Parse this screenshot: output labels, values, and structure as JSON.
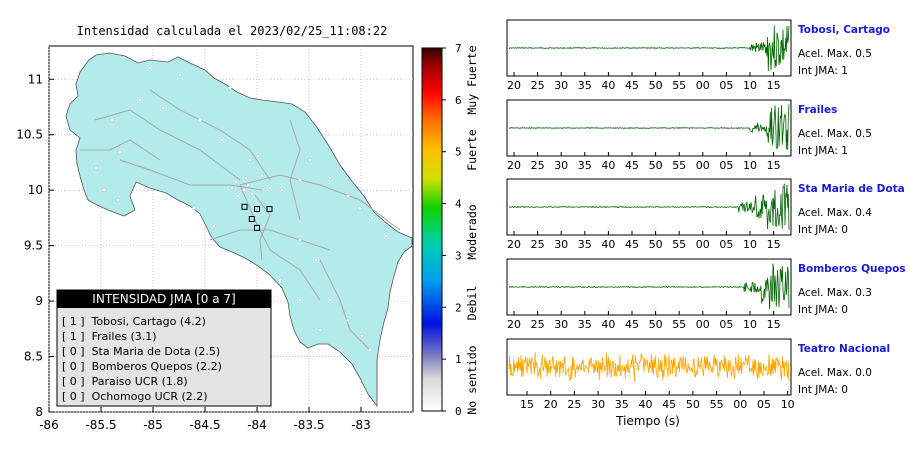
{
  "chart_data": [
    {
      "type": "map",
      "title": "Intensidad calculada el 2023/02/25_11:08:22",
      "xlim": [
        -86,
        -82.5
      ],
      "ylim": [
        8,
        11.3
      ],
      "x_ticks": [
        -86,
        -85.5,
        -85,
        -84.5,
        -84,
        -83.5,
        -83
      ],
      "x_tick_labels": [
        "-86",
        "-85.5",
        "-85",
        "-84.5",
        "-84",
        "-83.5",
        "-83"
      ],
      "y_ticks": [
        8,
        8.5,
        9,
        9.5,
        10,
        10.5,
        11
      ],
      "y_tick_labels": [
        "8",
        "8.5",
        "9",
        "9.5",
        "10",
        "10.5",
        "11"
      ],
      "land_color": "#b3eaea",
      "stations": [
        {
          "lon": -84.0,
          "lat": 9.83
        },
        {
          "lon": -84.12,
          "lat": 9.85
        },
        {
          "lon": -84.05,
          "lat": 9.74
        },
        {
          "lon": -84.0,
          "lat": 9.66
        },
        {
          "lon": -83.88,
          "lat": 9.83
        }
      ],
      "legend": {
        "title": "INTENSIDAD JMA [0 a 7]",
        "entries": [
          "[ 1 ]  Tobosi, Cartago (4.2)",
          "[ 1 ]  Frailes (3.1)",
          "[ 0 ]  Sta Maria de Dota (2.5)",
          "[ 0 ]  Bomberos Quepos (2.2)",
          "[ 0 ]  Paraiso UCR (1.8)",
          "[ 0 ]  Ochomogo UCR (2.2)"
        ]
      },
      "colorbar": {
        "range": [
          0,
          7
        ],
        "ticks": [
          "0",
          "1",
          "2",
          "3",
          "4",
          "5",
          "6",
          "7"
        ],
        "labels": [
          "No sentido",
          "Debil",
          "Moderado",
          "Fuerte",
          "Muy Fuerte"
        ]
      }
    },
    {
      "type": "line",
      "xlabel": "Tiempo (s)",
      "time_ticks": [
        "20",
        "25",
        "30",
        "35",
        "40",
        "45",
        "50",
        "55",
        "00",
        "05",
        "10",
        "15"
      ],
      "last_time_ticks": [
        "15",
        "20",
        "25",
        "30",
        "35",
        "40",
        "45",
        "50",
        "55",
        "00",
        "05",
        "10"
      ],
      "series": [
        {
          "name": "Tobosi, Cartago",
          "accel": "Acel. Max. 0.5",
          "jma": "Int JMA: 1",
          "color": "#006400",
          "onset": 0.86
        },
        {
          "name": "Frailes",
          "accel": "Acel. Max. 0.5",
          "jma": "Int JMA: 1",
          "color": "#006400",
          "onset": 0.86
        },
        {
          "name": "Sta Maria de Dota",
          "accel": "Acel. Max. 0.4",
          "jma": "Int JMA: 0",
          "color": "#006400",
          "onset": 0.82
        },
        {
          "name": "Bomberos Quepos",
          "accel": "Acel. Max. 0.3",
          "jma": "Int JMA: 0",
          "color": "#006400",
          "onset": 0.84
        },
        {
          "name": "Teatro Nacional",
          "accel": "Acel. Max. 0.0",
          "jma": "Int JMA: 0",
          "color": "#ffa500",
          "onset": 0.0
        }
      ]
    }
  ]
}
